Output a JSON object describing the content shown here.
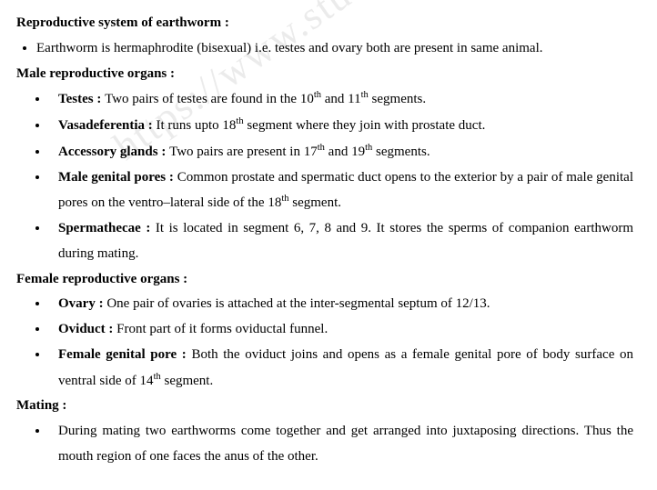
{
  "watermark": "https://www.stud",
  "sections": {
    "repro_heading": "Reproductive  system  of  earthworm  :",
    "repro_intro": "Earthworm is hermaphrodite (bisexual) i.e. testes and ovary both are present in same animal.",
    "male_heading": "Male  reproductive  organs  :",
    "male": {
      "testes_term": "Testes : ",
      "testes_text_a": "Two pairs of testes are found in the 10",
      "testes_text_b": " and 11",
      "testes_text_c": " segments.",
      "vasa_term": "Vasadeferentia : ",
      "vasa_text_a": "It runs upto 18",
      "vasa_text_b": " segment where they join with prostate duct.",
      "acc_term": "Accessory glands : ",
      "acc_text_a": "Two pairs are present in 17",
      "acc_text_b": " and 19",
      "acc_text_c": " segments.",
      "mgp_term": "Male genital pores : ",
      "mgp_text_a": "Common prostate and spermatic duct opens to the exterior by a pair of male genital pores on the ventro–lateral side of the 18",
      "mgp_text_b": " segment.",
      "sperm_term": "Spermathecae : ",
      "sperm_text": "It is located in segment 6, 7, 8 and 9. It stores the sperms of companion earthworm during mating."
    },
    "female_heading": "Female  reproductive  organs  :",
    "female": {
      "ovary_term": "Ovary : ",
      "ovary_text": "One pair of ovaries is attached at the inter-segmental septum of 12/13.",
      "oviduct_term": "Oviduct : ",
      "oviduct_text": "Front part of it forms oviductal funnel.",
      "fgp_term": "Female genital pore : ",
      "fgp_text_a": "Both the oviduct joins and opens as a female genital pore of body surface on ventral side of 14",
      "fgp_text_b": " segment."
    },
    "mating_heading": "Mating  :",
    "mating_text": "During  mating  two  earthworms  come  together  and  get  arranged  into  juxtaposing  directions. Thus the mouth region of one faces the anus of the other."
  },
  "sup": {
    "th": "th"
  },
  "style": {
    "font_family": "Times New Roman",
    "base_fontsize_pt": 11,
    "heading_weight": "bold",
    "text_color": "#000000",
    "background_color": "#ffffff",
    "watermark_color": "rgba(0,0,0,0.08)",
    "line_height": 1.85
  }
}
